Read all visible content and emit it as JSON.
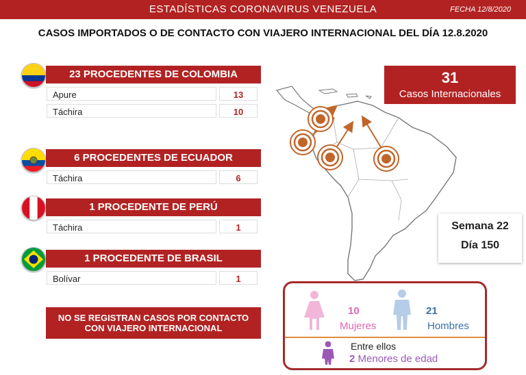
{
  "header": {
    "title": "ESTADÍSTICAS CORONAVIRUS VENEZUELA",
    "date": "FECHA 12/8/2020"
  },
  "headline": "CASOS IMPORTADOS O DE CONTACTO CON VIAJERO INTERNACIONAL DEL DÍA 12.8.2020",
  "sections": [
    {
      "country": "COLOMBIA",
      "flag": "colombia-flag",
      "title": "23 PROCEDENTES DE COLOMBIA",
      "rows": [
        {
          "state": "Apure",
          "count": "13"
        },
        {
          "state": "Táchira",
          "count": "10"
        }
      ]
    },
    {
      "country": "ECUADOR",
      "flag": "ecuador-flag",
      "title": "6 PROCEDENTES DE ECUADOR",
      "rows": [
        {
          "state": "Táchira",
          "count": "6"
        }
      ]
    },
    {
      "country": "PERU",
      "flag": "peru-flag",
      "title": "1 PROCEDENTE DE PERÚ",
      "rows": [
        {
          "state": "Táchira",
          "count": "1"
        }
      ]
    },
    {
      "country": "BRASIL",
      "flag": "brazil-flag",
      "title": "1 PROCEDENTE DE BRASIL",
      "rows": [
        {
          "state": "Bolívar",
          "count": "1"
        }
      ]
    }
  ],
  "notice": {
    "line1": "NO SE REGISTRAN CASOS POR CONTACTO",
    "line2": "CON VIAJERO INTERNACIONAL"
  },
  "international": {
    "count": "31",
    "label": "Casos Internacionales"
  },
  "week": {
    "week": "Semana 22",
    "day": "Día 150"
  },
  "gender": {
    "women_count": "10",
    "women_label": "Mujeres",
    "men_count": "21",
    "men_label": "Hombres",
    "among": "Entre ellos",
    "minors_count": "2",
    "minors_label": "Menores de edad"
  },
  "colors": {
    "accent": "#b22222",
    "women": "#e066b0",
    "men": "#3a6ea5",
    "minors": "#9b59b6",
    "map_arrow": "#c0662b"
  }
}
